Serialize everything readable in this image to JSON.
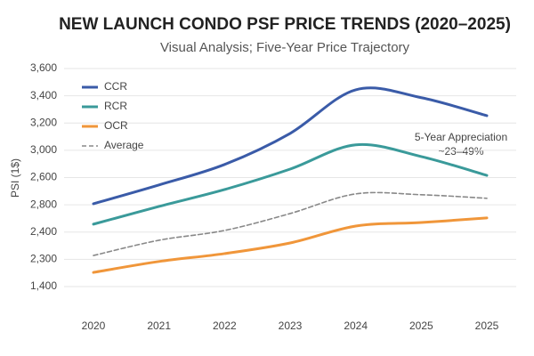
{
  "chart_data": {
    "type": "line",
    "title": "NEW LAUNCH CONDO PSF PRICE TRENDS (2020–2025)",
    "subtitle": "Visual Analysis; Five-Year Price Trajectory",
    "y_label": "PSI (1$)",
    "categories": [
      "2020",
      "2021",
      "2022",
      "2023",
      "2024",
      "2025",
      "2025"
    ],
    "ylim": [
      0,
      8
    ],
    "yticks": [
      0,
      1,
      2,
      3,
      4,
      5,
      6,
      7,
      8
    ],
    "ytick_labels": [
      "1,400",
      "2,300",
      "2,400",
      "2,800",
      "2,600",
      "3,000",
      "3,200",
      "3,400",
      "3,600"
    ],
    "grid": true,
    "legend": "top-left",
    "series": [
      {
        "name": "CCR",
        "color": "#3a5ba8",
        "dash": false,
        "values": [
          3.04,
          3.73,
          4.48,
          5.62,
          7.22,
          6.93,
          6.27
        ]
      },
      {
        "name": "RCR",
        "color": "#3a9a9a",
        "dash": false,
        "values": [
          2.29,
          2.94,
          3.56,
          4.31,
          5.2,
          4.77,
          4.08
        ]
      },
      {
        "name": "OCR",
        "color": "#f0963a",
        "dash": false,
        "values": [
          0.52,
          0.92,
          1.21,
          1.6,
          2.22,
          2.35,
          2.52
        ]
      },
      {
        "name": "Average",
        "color": "#888888",
        "dash": true,
        "values": [
          1.14,
          1.7,
          2.06,
          2.68,
          3.4,
          3.37,
          3.24
        ]
      }
    ],
    "annotation": {
      "title": "5-Year Appreciation",
      "text": "~23–49%"
    }
  }
}
